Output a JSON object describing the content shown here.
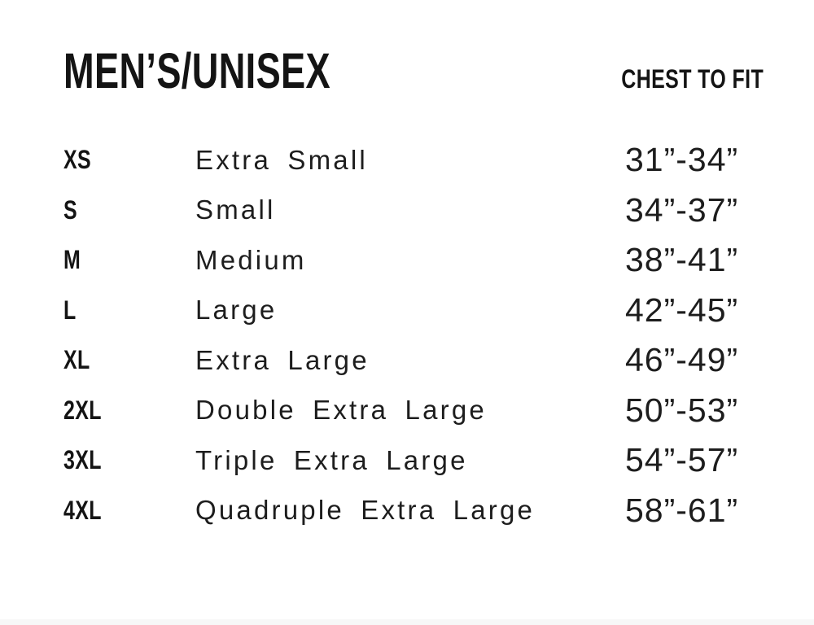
{
  "page": {
    "title": "MEN’S/UNISEX",
    "chest_header": "CHEST TO FIT",
    "colors": {
      "text": "#1a1a1a",
      "background": "#ffffff",
      "bottom_strip": "#f7f7f7"
    }
  },
  "size_chart": {
    "rows": [
      {
        "code": "XS",
        "name": "Extra Small",
        "chest": "31”-34”"
      },
      {
        "code": "S",
        "name": "Small",
        "chest": "34”-37”"
      },
      {
        "code": "M",
        "name": "Medium",
        "chest": "38”-41”"
      },
      {
        "code": "L",
        "name": "Large",
        "chest": "42”-45”"
      },
      {
        "code": "XL",
        "name": "Extra Large",
        "chest": "46”-49”"
      },
      {
        "code": "2XL",
        "name": "Double Extra Large",
        "chest": "50”-53”"
      },
      {
        "code": "3XL",
        "name": "Triple Extra Large",
        "chest": "54”-57”"
      },
      {
        "code": "4XL",
        "name": "Quadruple Extra Large",
        "chest": "58”-61”"
      }
    ]
  }
}
